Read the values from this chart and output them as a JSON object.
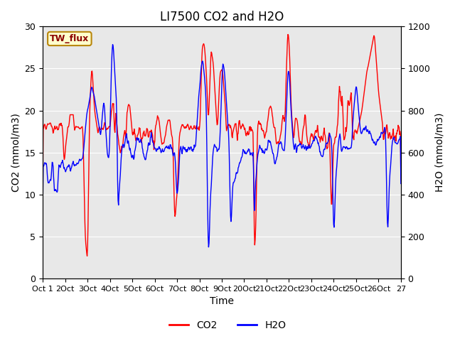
{
  "title": "LI7500 CO2 and H2O",
  "xlabel": "Time",
  "ylabel_left": "CO2 (mmol/m3)",
  "ylabel_right": "H2O (mmol/m3)",
  "ylim_left": [
    0,
    30
  ],
  "ylim_right": [
    0,
    1200
  ],
  "yticks_left": [
    0,
    5,
    10,
    15,
    20,
    25,
    30
  ],
  "yticks_right": [
    0,
    200,
    400,
    600,
    800,
    1000,
    1200
  ],
  "xtick_labels": [
    "Oct 1",
    "2Oct",
    "3Oct",
    "4Oct",
    "5Oct",
    "6Oct",
    "7Oct",
    "8Oct",
    "9Oct",
    "20Oct",
    "21Oct",
    "22Oct",
    "23Oct",
    "24Oct",
    "25Oct",
    "26Oct",
    "27"
  ],
  "label_box_text": "TW_flux",
  "legend_co2": "CO2",
  "legend_h2o": "H2O",
  "co2_color": "#FF0000",
  "h2o_color": "#0000FF",
  "bg_color": "#E8E8E8",
  "fig_bg_color": "#FFFFFF",
  "title_fontsize": 12,
  "axis_fontsize": 10,
  "tick_fontsize": 8,
  "legend_fontsize": 10
}
